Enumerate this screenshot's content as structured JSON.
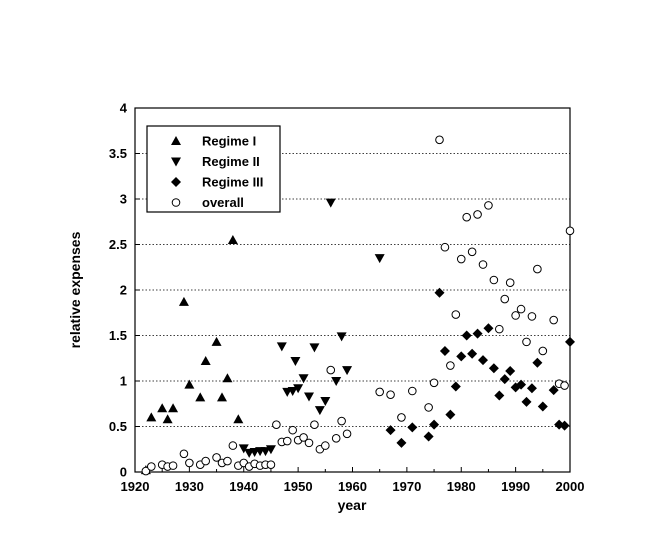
{
  "chart_data": {
    "type": "scatter",
    "title": "",
    "xlabel": "year",
    "ylabel": "relative expenses",
    "xlim": [
      1920,
      2000
    ],
    "ylim": [
      0,
      4
    ],
    "xticks": [
      "1920",
      "1930",
      "1940",
      "1950",
      "1960",
      "1970",
      "1980",
      "1990",
      "2000"
    ],
    "yticks": [
      "0",
      "0.5",
      "1",
      "1.5",
      "2",
      "2.5",
      "3",
      "3.5",
      "4"
    ],
    "grid": "horizontal",
    "legend_position": "top-left",
    "series": [
      {
        "name": "Regime I",
        "marker": "triangle-up",
        "color": "#000000",
        "points": [
          [
            1922,
            0.02
          ],
          [
            1923,
            0.6
          ],
          [
            1925,
            0.7
          ],
          [
            1926,
            0.58
          ],
          [
            1927,
            0.7
          ],
          [
            1929,
            1.87
          ],
          [
            1930,
            0.96
          ],
          [
            1932,
            0.82
          ],
          [
            1933,
            1.22
          ],
          [
            1935,
            1.43
          ],
          [
            1936,
            0.82
          ],
          [
            1937,
            1.03
          ],
          [
            1938,
            2.55
          ],
          [
            1939,
            0.58
          ]
        ]
      },
      {
        "name": "Regime II",
        "marker": "triangle-down",
        "color": "#000000",
        "points": [
          [
            1940,
            0.26
          ],
          [
            1941,
            0.21
          ],
          [
            1942,
            0.22
          ],
          [
            1943,
            0.23
          ],
          [
            1944,
            0.23
          ],
          [
            1945,
            0.25
          ],
          [
            1947,
            1.38
          ],
          [
            1948,
            0.88
          ],
          [
            1949,
            0.89
          ],
          [
            1949.5,
            1.22
          ],
          [
            1950,
            0.92
          ],
          [
            1951,
            1.03
          ],
          [
            1952,
            0.83
          ],
          [
            1953,
            1.37
          ],
          [
            1954,
            0.68
          ],
          [
            1955,
            0.78
          ],
          [
            1956,
            2.96
          ],
          [
            1957,
            1.0
          ],
          [
            1958,
            1.49
          ],
          [
            1959,
            1.12
          ],
          [
            1965,
            2.35
          ]
        ]
      },
      {
        "name": "Regime III",
        "marker": "diamond",
        "color": "#000000",
        "points": [
          [
            1967,
            0.46
          ],
          [
            1969,
            0.32
          ],
          [
            1971,
            0.49
          ],
          [
            1974,
            0.39
          ],
          [
            1975,
            0.52
          ],
          [
            1976,
            1.97
          ],
          [
            1977,
            1.33
          ],
          [
            1978,
            0.63
          ],
          [
            1979,
            0.94
          ],
          [
            1980,
            1.27
          ],
          [
            1981,
            1.5
          ],
          [
            1982,
            1.3
          ],
          [
            1983,
            1.52
          ],
          [
            1984,
            1.23
          ],
          [
            1985,
            1.58
          ],
          [
            1986,
            1.14
          ],
          [
            1987,
            0.84
          ],
          [
            1988,
            1.02
          ],
          [
            1989,
            1.11
          ],
          [
            1990,
            0.93
          ],
          [
            1991,
            0.96
          ],
          [
            1992,
            0.77
          ],
          [
            1993,
            0.92
          ],
          [
            1994,
            1.2
          ],
          [
            1995,
            0.72
          ],
          [
            1997,
            0.9
          ],
          [
            1998,
            0.52
          ],
          [
            1999,
            0.51
          ],
          [
            2000,
            1.43
          ]
        ]
      },
      {
        "name": "overall",
        "marker": "circle-open",
        "color": "#000000",
        "points": [
          [
            1922,
            0.01
          ],
          [
            1923,
            0.06
          ],
          [
            1925,
            0.08
          ],
          [
            1926,
            0.06
          ],
          [
            1927,
            0.07
          ],
          [
            1929,
            0.2
          ],
          [
            1930,
            0.1
          ],
          [
            1932,
            0.08
          ],
          [
            1933,
            0.12
          ],
          [
            1935,
            0.16
          ],
          [
            1936,
            0.1
          ],
          [
            1937,
            0.12
          ],
          [
            1938,
            0.29
          ],
          [
            1939,
            0.07
          ],
          [
            1940,
            0.1
          ],
          [
            1941,
            0.06
          ],
          [
            1942,
            0.09
          ],
          [
            1943,
            0.07
          ],
          [
            1944,
            0.08
          ],
          [
            1945,
            0.08
          ],
          [
            1946,
            0.52
          ],
          [
            1947,
            0.33
          ],
          [
            1948,
            0.34
          ],
          [
            1949,
            0.46
          ],
          [
            1950,
            0.35
          ],
          [
            1951,
            0.38
          ],
          [
            1952,
            0.32
          ],
          [
            1953,
            0.52
          ],
          [
            1954,
            0.25
          ],
          [
            1955,
            0.29
          ],
          [
            1956,
            1.12
          ],
          [
            1957,
            0.37
          ],
          [
            1958,
            0.56
          ],
          [
            1959,
            0.42
          ],
          [
            1965,
            0.88
          ],
          [
            1967,
            0.85
          ],
          [
            1969,
            0.6
          ],
          [
            1971,
            0.89
          ],
          [
            1974,
            0.71
          ],
          [
            1975,
            0.98
          ],
          [
            1976,
            3.65
          ],
          [
            1977,
            2.47
          ],
          [
            1978,
            1.17
          ],
          [
            1979,
            1.73
          ],
          [
            1980,
            2.34
          ],
          [
            1981,
            2.8
          ],
          [
            1982,
            2.42
          ],
          [
            1983,
            2.83
          ],
          [
            1984,
            2.28
          ],
          [
            1985,
            2.93
          ],
          [
            1986,
            2.11
          ],
          [
            1987,
            1.57
          ],
          [
            1988,
            1.9
          ],
          [
            1989,
            2.08
          ],
          [
            1990,
            1.72
          ],
          [
            1991,
            1.79
          ],
          [
            1992,
            1.43
          ],
          [
            1993,
            1.71
          ],
          [
            1994,
            2.23
          ],
          [
            1995,
            1.33
          ],
          [
            1997,
            1.67
          ],
          [
            1998,
            0.97
          ],
          [
            1999,
            0.95
          ],
          [
            2000,
            2.65
          ]
        ]
      }
    ]
  }
}
